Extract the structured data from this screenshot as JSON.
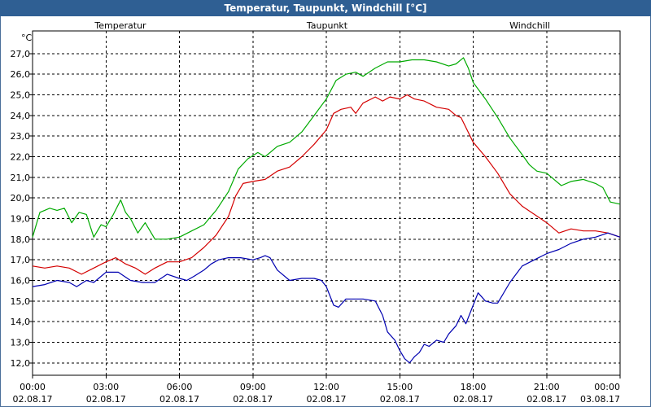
{
  "chart_data": {
    "type": "line",
    "title": "Temperatur, Taupunkt, Windchill [°C]",
    "ylabel": "°C",
    "ylim": [
      11.4,
      28.1
    ],
    "xlim": [
      0,
      24
    ],
    "grid": true,
    "y_ticks": [
      12.0,
      13.0,
      14.0,
      15.0,
      16.0,
      17.0,
      18.0,
      19.0,
      20.0,
      21.0,
      22.0,
      23.0,
      24.0,
      25.0,
      26.0,
      27.0
    ],
    "y_tick_labels": [
      "12,0",
      "13,0",
      "14,0",
      "15,0",
      "16,0",
      "17,0",
      "18,0",
      "19,0",
      "20,0",
      "21,0",
      "22,0",
      "23,0",
      "24,0",
      "25,0",
      "26,0",
      "27,0"
    ],
    "x_ticks": [
      {
        "hour": 0,
        "time": "00:00",
        "date": "02.08.17"
      },
      {
        "hour": 3,
        "time": "03:00",
        "date": "02.08.17"
      },
      {
        "hour": 6,
        "time": "06:00",
        "date": "02.08.17"
      },
      {
        "hour": 9,
        "time": "09:00",
        "date": "02.08.17"
      },
      {
        "hour": 12,
        "time": "12:00",
        "date": "02.08.17"
      },
      {
        "hour": 15,
        "time": "15:00",
        "date": "02.08.17"
      },
      {
        "hour": 18,
        "time": "18:00",
        "date": "02.08.17"
      },
      {
        "hour": 21,
        "time": "21:00",
        "date": "02.08.17"
      },
      {
        "hour": 24,
        "time": "00:00",
        "date": "03.08.17"
      }
    ],
    "series": [
      {
        "name": "Temperatur",
        "color": "#d40000",
        "points": [
          [
            0,
            16.7
          ],
          [
            0.5,
            16.6
          ],
          [
            1,
            16.7
          ],
          [
            1.5,
            16.6
          ],
          [
            2,
            16.3
          ],
          [
            2.5,
            16.6
          ],
          [
            3,
            16.9
          ],
          [
            3.4,
            17.1
          ],
          [
            3.8,
            16.8
          ],
          [
            4.2,
            16.6
          ],
          [
            4.6,
            16.3
          ],
          [
            5,
            16.6
          ],
          [
            5.5,
            16.9
          ],
          [
            6,
            16.9
          ],
          [
            6.5,
            17.1
          ],
          [
            7,
            17.6
          ],
          [
            7.5,
            18.2
          ],
          [
            8,
            19.1
          ],
          [
            8.3,
            20.1
          ],
          [
            8.6,
            20.7
          ],
          [
            9,
            20.8
          ],
          [
            9.5,
            20.9
          ],
          [
            10,
            21.3
          ],
          [
            10.5,
            21.5
          ],
          [
            11,
            22.0
          ],
          [
            11.5,
            22.6
          ],
          [
            12,
            23.3
          ],
          [
            12.3,
            24.1
          ],
          [
            12.6,
            24.3
          ],
          [
            13,
            24.4
          ],
          [
            13.2,
            24.1
          ],
          [
            13.5,
            24.6
          ],
          [
            14,
            24.9
          ],
          [
            14.3,
            24.7
          ],
          [
            14.6,
            24.9
          ],
          [
            15,
            24.8
          ],
          [
            15.3,
            25.0
          ],
          [
            15.6,
            24.8
          ],
          [
            16,
            24.7
          ],
          [
            16.5,
            24.4
          ],
          [
            17,
            24.3
          ],
          [
            17.3,
            24.0
          ],
          [
            17.5,
            23.9
          ],
          [
            18,
            22.7
          ],
          [
            18.5,
            22.0
          ],
          [
            19,
            21.2
          ],
          [
            19.5,
            20.2
          ],
          [
            20,
            19.6
          ],
          [
            20.5,
            19.2
          ],
          [
            21,
            18.8
          ],
          [
            21.5,
            18.3
          ],
          [
            22,
            18.5
          ],
          [
            22.5,
            18.4
          ],
          [
            23,
            18.4
          ],
          [
            23.5,
            18.3
          ],
          [
            24,
            18.1
          ]
        ]
      },
      {
        "name": "Taupunkt",
        "color": "#0000b0",
        "points": [
          [
            0,
            15.7
          ],
          [
            0.5,
            15.8
          ],
          [
            1,
            16.0
          ],
          [
            1.5,
            15.9
          ],
          [
            1.8,
            15.7
          ],
          [
            2.2,
            16.0
          ],
          [
            2.5,
            15.9
          ],
          [
            3,
            16.4
          ],
          [
            3.5,
            16.4
          ],
          [
            4,
            16.0
          ],
          [
            4.5,
            15.9
          ],
          [
            5,
            15.9
          ],
          [
            5.5,
            16.3
          ],
          [
            6,
            16.1
          ],
          [
            6.3,
            16.0
          ],
          [
            6.6,
            16.2
          ],
          [
            7,
            16.5
          ],
          [
            7.3,
            16.8
          ],
          [
            7.6,
            17.0
          ],
          [
            8,
            17.1
          ],
          [
            8.5,
            17.1
          ],
          [
            9,
            17.0
          ],
          [
            9.3,
            17.1
          ],
          [
            9.5,
            17.2
          ],
          [
            9.7,
            17.1
          ],
          [
            10,
            16.5
          ],
          [
            10.5,
            16.0
          ],
          [
            11,
            16.1
          ],
          [
            11.5,
            16.1
          ],
          [
            11.8,
            16.0
          ],
          [
            12,
            15.7
          ],
          [
            12.3,
            14.8
          ],
          [
            12.5,
            14.7
          ],
          [
            12.8,
            15.1
          ],
          [
            13,
            15.1
          ],
          [
            13.5,
            15.1
          ],
          [
            14,
            15.0
          ],
          [
            14.3,
            14.3
          ],
          [
            14.5,
            13.5
          ],
          [
            14.8,
            13.1
          ],
          [
            15,
            12.6
          ],
          [
            15.2,
            12.2
          ],
          [
            15.4,
            12.0
          ],
          [
            15.6,
            12.3
          ],
          [
            15.8,
            12.5
          ],
          [
            16,
            12.9
          ],
          [
            16.2,
            12.8
          ],
          [
            16.5,
            13.1
          ],
          [
            16.8,
            13.0
          ],
          [
            17,
            13.4
          ],
          [
            17.3,
            13.8
          ],
          [
            17.5,
            14.3
          ],
          [
            17.7,
            13.9
          ],
          [
            18,
            14.8
          ],
          [
            18.2,
            15.4
          ],
          [
            18.5,
            15.0
          ],
          [
            18.8,
            14.9
          ],
          [
            19,
            14.9
          ],
          [
            19.5,
            15.9
          ],
          [
            20,
            16.7
          ],
          [
            20.5,
            17.0
          ],
          [
            21,
            17.3
          ],
          [
            21.5,
            17.5
          ],
          [
            22,
            17.8
          ],
          [
            22.5,
            18.0
          ],
          [
            23,
            18.1
          ],
          [
            23.5,
            18.3
          ],
          [
            24,
            18.1
          ]
        ]
      },
      {
        "name": "Windchill",
        "color": "#00aa00",
        "points": [
          [
            0,
            18.1
          ],
          [
            0.3,
            19.3
          ],
          [
            0.7,
            19.5
          ],
          [
            1,
            19.4
          ],
          [
            1.3,
            19.5
          ],
          [
            1.6,
            18.8
          ],
          [
            1.9,
            19.3
          ],
          [
            2.2,
            19.2
          ],
          [
            2.5,
            18.1
          ],
          [
            2.8,
            18.7
          ],
          [
            3,
            18.6
          ],
          [
            3.3,
            19.2
          ],
          [
            3.6,
            19.9
          ],
          [
            3.8,
            19.3
          ],
          [
            4,
            19.0
          ],
          [
            4.3,
            18.3
          ],
          [
            4.6,
            18.8
          ],
          [
            5,
            18.0
          ],
          [
            5.5,
            18.0
          ],
          [
            6,
            18.1
          ],
          [
            6.5,
            18.4
          ],
          [
            7,
            18.7
          ],
          [
            7.5,
            19.4
          ],
          [
            8,
            20.3
          ],
          [
            8.4,
            21.4
          ],
          [
            8.8,
            21.9
          ],
          [
            9.2,
            22.2
          ],
          [
            9.5,
            22.0
          ],
          [
            10,
            22.5
          ],
          [
            10.5,
            22.7
          ],
          [
            11,
            23.2
          ],
          [
            11.5,
            24.0
          ],
          [
            12,
            24.8
          ],
          [
            12.4,
            25.7
          ],
          [
            12.8,
            26.0
          ],
          [
            13.2,
            26.1
          ],
          [
            13.5,
            25.9
          ],
          [
            14,
            26.3
          ],
          [
            14.5,
            26.6
          ],
          [
            15,
            26.6
          ],
          [
            15.5,
            26.7
          ],
          [
            16,
            26.7
          ],
          [
            16.5,
            26.6
          ],
          [
            17,
            26.4
          ],
          [
            17.3,
            26.5
          ],
          [
            17.6,
            26.8
          ],
          [
            17.8,
            26.3
          ],
          [
            18,
            25.6
          ],
          [
            18.5,
            24.8
          ],
          [
            19,
            23.9
          ],
          [
            19.5,
            22.9
          ],
          [
            20,
            22.1
          ],
          [
            20.3,
            21.6
          ],
          [
            20.6,
            21.3
          ],
          [
            21,
            21.2
          ],
          [
            21.3,
            20.9
          ],
          [
            21.6,
            20.6
          ],
          [
            22,
            20.8
          ],
          [
            22.5,
            20.9
          ],
          [
            23,
            20.7
          ],
          [
            23.3,
            20.5
          ],
          [
            23.6,
            19.8
          ],
          [
            24,
            19.7
          ]
        ]
      }
    ]
  }
}
